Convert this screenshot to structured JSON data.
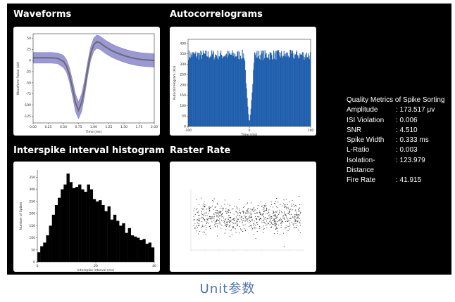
{
  "titles": {
    "waveforms": "Waveforms",
    "autocorrelograms": "Autocorrelograms",
    "isi": "Interspike interval histogram",
    "raster": "Raster Rate"
  },
  "metrics": {
    "heading": "Quality Metrics of Spike Sorting",
    "rows": [
      {
        "label": "Amplitude",
        "value": ": 173.517 μv"
      },
      {
        "label": "ISI Violation",
        "value": ": 0.006"
      },
      {
        "label": "SNR",
        "value": ": 4.510"
      },
      {
        "label": "Spike Width",
        "value": ": 0.333 ms"
      },
      {
        "label": "L-Ratio",
        "value": ": 0.003"
      },
      {
        "label": "Isolation-",
        "value": ": 123.979"
      },
      {
        "label": "Distance",
        "value": ""
      },
      {
        "label": "Fire Rate",
        "value": ": 41.915"
      }
    ]
  },
  "caption": "Unit参数",
  "colors": {
    "waveform_band": "#9b98d6",
    "waveform_line": "#6b6b6b",
    "acg_bars": "#1f5fad",
    "isi_bars": "#000000",
    "panel_bg": "#000000",
    "caption": "#4a74a8"
  },
  "chart_data": [
    {
      "type": "line",
      "title": "Waveforms",
      "xlabel": "Time (ms)",
      "ylabel": "Waveform Value (uV)",
      "xlim": [
        0,
        2.0
      ],
      "ylim": [
        -140,
        60
      ],
      "xticks": [
        "0.00",
        "0.25",
        "0.50",
        "0.75",
        "1.00",
        "1.25",
        "1.50",
        "1.75",
        "2.00"
      ],
      "yticks": [
        "50",
        "25",
        "0",
        "-25",
        "-50",
        "-75",
        "-100",
        "-125"
      ],
      "x": [
        0,
        0.1,
        0.2,
        0.3,
        0.4,
        0.5,
        0.55,
        0.6,
        0.65,
        0.7,
        0.75,
        0.8,
        0.85,
        0.9,
        0.95,
        1.0,
        1.05,
        1.1,
        1.15,
        1.2,
        1.3,
        1.4,
        1.5,
        1.6,
        1.7,
        1.8,
        1.9,
        2.0
      ],
      "series": [
        {
          "role": "mean",
          "values": [
            6,
            6,
            6,
            6,
            5,
            -2,
            -12,
            -32,
            -62,
            -95,
            -112,
            -95,
            -62,
            -20,
            15,
            35,
            42,
            40,
            35,
            30,
            22,
            16,
            11,
            7,
            4,
            2,
            1,
            0
          ]
        },
        {
          "role": "upper",
          "values": [
            18,
            18,
            18,
            18,
            17,
            12,
            2,
            -16,
            -44,
            -75,
            -93,
            -75,
            -44,
            -4,
            30,
            50,
            57,
            55,
            50,
            45,
            37,
            31,
            26,
            22,
            19,
            17,
            16,
            15
          ]
        },
        {
          "role": "lower",
          "values": [
            -6,
            -6,
            -6,
            -6,
            -7,
            -16,
            -26,
            -48,
            -80,
            -115,
            -131,
            -115,
            -80,
            -36,
            0,
            20,
            27,
            25,
            20,
            15,
            7,
            1,
            -4,
            -8,
            -11,
            -13,
            -14,
            -15
          ]
        }
      ]
    },
    {
      "type": "bar",
      "title": "Autocorrelograms",
      "xlabel": "Time (ms)",
      "ylabel": "Autocorrelogram (Hz)",
      "xlim": [
        -100,
        100
      ],
      "ylim": [
        0,
        420
      ],
      "xticks": [
        "-100",
        "0",
        "100"
      ],
      "yticks": [
        "0",
        "50",
        "100",
        "150",
        "200",
        "250",
        "300",
        "350",
        "400"
      ],
      "baseline": 345,
      "noise": 25,
      "dip_center": 0,
      "dip_halfwidth": 8,
      "dip_min": 20
    },
    {
      "type": "bar",
      "title": "Interspike interval histogram",
      "xlabel": "Interspike interval (ms)",
      "ylabel": "Number of Spikes",
      "xlim": [
        0,
        40
      ],
      "ylim": [
        0,
        380
      ],
      "xticks": [
        "0",
        "20",
        "40"
      ],
      "yticks": [
        "0",
        "50",
        "100",
        "150",
        "200",
        "250",
        "300",
        "350"
      ],
      "bin_width": 1,
      "values": [
        40,
        65,
        80,
        110,
        150,
        195,
        235,
        265,
        300,
        320,
        365,
        330,
        305,
        310,
        320,
        300,
        290,
        320,
        300,
        260,
        250,
        255,
        235,
        210,
        230,
        175,
        195,
        170,
        150,
        160,
        120,
        140,
        110,
        105,
        100,
        90,
        95,
        75,
        80,
        60
      ]
    },
    {
      "type": "scatter",
      "title": "Raster Rate",
      "ylim": [
        0,
        100
      ],
      "band_center": 55,
      "band_spread": 12
    }
  ]
}
